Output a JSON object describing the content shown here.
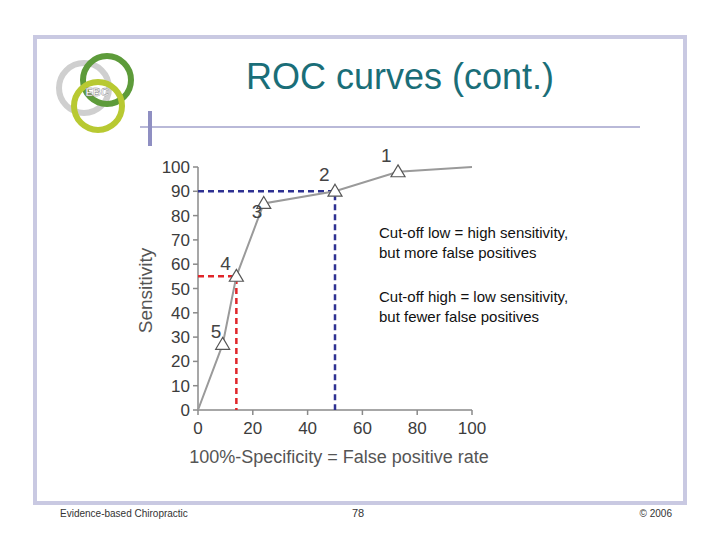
{
  "slide": {
    "title": "ROC curves (cont.)",
    "logo": "EBC",
    "footer_left": "Evidence-based Chiropractic",
    "page": "78",
    "footer_right": "© 2006"
  },
  "chart_data": {
    "type": "line",
    "x_label": "100%-Specificity = False positive rate",
    "y_label": "Sensitivity",
    "x": [
      0,
      9,
      14,
      24,
      50,
      73,
      100
    ],
    "series": [
      {
        "color": "#9a9a9a",
        "marker": "triangle",
        "values": [
          0,
          27,
          55,
          85,
          90,
          98,
          100
        ],
        "point_labels": [
          null,
          "5",
          "4",
          "3",
          "2",
          "1",
          null
        ]
      }
    ],
    "guides": [
      {
        "x": 14,
        "y": 55,
        "color": "#e0262a"
      },
      {
        "x": 50,
        "y": 90,
        "color": "#2e3192"
      }
    ],
    "annotations": [
      [
        "Cut-off low = high sensitivity,",
        "but more false positives"
      ],
      [
        "Cut-off high = low sensitivity,",
        "but fewer false positives"
      ]
    ],
    "xlim": [
      0,
      100
    ],
    "ylim": [
      0,
      100
    ],
    "xticks": [
      0,
      20,
      40,
      60,
      80,
      100
    ],
    "yticks": [
      0,
      10,
      20,
      30,
      40,
      50,
      60,
      70,
      80,
      90,
      100
    ],
    "grid": false
  }
}
